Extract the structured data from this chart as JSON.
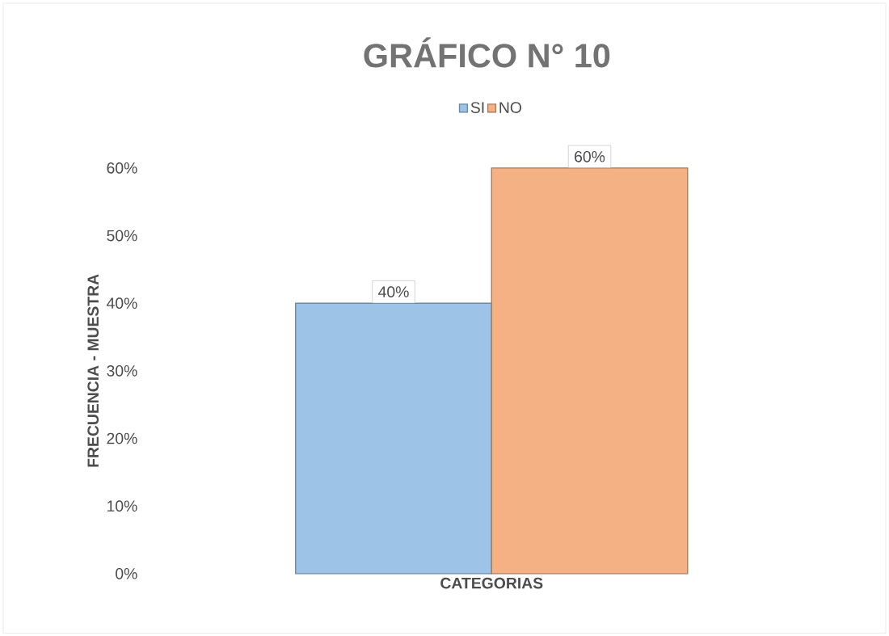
{
  "chart_data": {
    "type": "bar",
    "title": "GRÁFICO N° 10",
    "xlabel": "CATEGORIAS",
    "ylabel": "FRECUENCIA - MUESTRA",
    "categories": [
      null
    ],
    "series": [
      {
        "name": "SI",
        "color": "#9dc3e6",
        "values": [
          40
        ],
        "value_labels": [
          "40%"
        ]
      },
      {
        "name": "NO",
        "color": "#f4b183",
        "values": [
          60
        ],
        "value_labels": [
          "60%"
        ]
      }
    ],
    "ylim": [
      0,
      60
    ],
    "yticks": [
      {
        "value": 0,
        "label": "0%"
      },
      {
        "value": 10,
        "label": "10%"
      },
      {
        "value": 20,
        "label": "20%"
      },
      {
        "value": 30,
        "label": "30%"
      },
      {
        "value": 40,
        "label": "40%"
      },
      {
        "value": 50,
        "label": "50%"
      },
      {
        "value": 60,
        "label": "60%"
      }
    ],
    "legend": "top",
    "grid": false
  }
}
